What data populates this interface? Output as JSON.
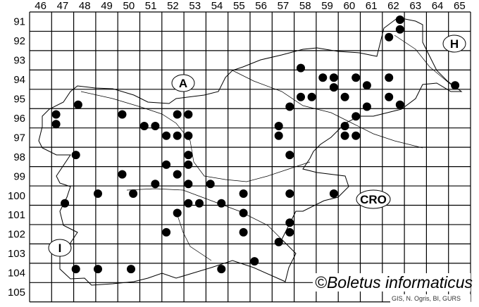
{
  "map": {
    "column_labels": [
      "46",
      "47",
      "48",
      "49",
      "50",
      "51",
      "52",
      "53",
      "54",
      "55",
      "56",
      "57",
      "58",
      "59",
      "60",
      "61",
      "62",
      "63",
      "64",
      "65"
    ],
    "row_labels": [
      "91",
      "92",
      "93",
      "94",
      "95",
      "96",
      "97",
      "98",
      "99",
      "100",
      "101",
      "102",
      "103",
      "104",
      "105"
    ],
    "country_labels": {
      "austria": "A",
      "hungary": "H",
      "italy": "I",
      "croatia": "CRO"
    },
    "copyright": "©Boletus informaticus",
    "credit": "GIS, N. Ogris, BI, GURS",
    "dot_color": "#000000",
    "grid_color": "#000000",
    "records": [
      [
        62.3,
        90.9
      ],
      [
        62.3,
        91.4
      ],
      [
        61.8,
        91.8
      ],
      [
        57.8,
        93.4
      ],
      [
        58.8,
        93.9
      ],
      [
        59.3,
        93.9
      ],
      [
        60.3,
        93.9
      ],
      [
        61.8,
        93.9
      ],
      [
        64.8,
        94.3
      ],
      [
        59.3,
        94.4
      ],
      [
        60.8,
        94.3
      ],
      [
        57.8,
        94.9
      ],
      [
        58.3,
        94.9
      ],
      [
        59.8,
        94.9
      ],
      [
        61.8,
        94.9
      ],
      [
        62.3,
        95.3
      ],
      [
        57.3,
        95.4
      ],
      [
        60.8,
        95.4
      ],
      [
        47.7,
        95.3
      ],
      [
        46.7,
        95.8
      ],
      [
        46.7,
        96.3
      ],
      [
        49.7,
        95.8
      ],
      [
        52.2,
        95.8
      ],
      [
        52.7,
        95.8
      ],
      [
        50.7,
        96.4
      ],
      [
        51.2,
        96.4
      ],
      [
        51.7,
        96.9
      ],
      [
        52.2,
        96.9
      ],
      [
        52.7,
        96.9
      ],
      [
        60.3,
        95.9
      ],
      [
        59.8,
        96.4
      ],
      [
        56.8,
        96.4
      ],
      [
        56.8,
        96.9
      ],
      [
        59.8,
        96.9
      ],
      [
        60.3,
        96.9
      ],
      [
        47.6,
        97.9
      ],
      [
        52.7,
        97.9
      ],
      [
        52.7,
        98.4
      ],
      [
        51.7,
        98.4
      ],
      [
        57.3,
        97.9
      ],
      [
        49.7,
        98.9
      ],
      [
        52.2,
        98.9
      ],
      [
        51.2,
        99.4
      ],
      [
        52.7,
        99.4
      ],
      [
        53.7,
        99.4
      ],
      [
        48.6,
        99.9
      ],
      [
        50.2,
        99.9
      ],
      [
        55.2,
        99.9
      ],
      [
        57.3,
        99.9
      ],
      [
        59.3,
        99.9
      ],
      [
        47.1,
        100.4
      ],
      [
        52.7,
        100.4
      ],
      [
        53.2,
        100.4
      ],
      [
        54.2,
        100.4
      ],
      [
        52.2,
        100.9
      ],
      [
        55.2,
        100.9
      ],
      [
        57.3,
        101.4
      ],
      [
        57.3,
        101.9
      ],
      [
        55.2,
        101.9
      ],
      [
        51.7,
        101.9
      ],
      [
        56.8,
        102.4
      ],
      [
        55.7,
        103.4
      ],
      [
        47.6,
        103.8
      ],
      [
        48.6,
        103.8
      ],
      [
        50.1,
        103.8
      ],
      [
        54.2,
        103.8
      ]
    ]
  }
}
